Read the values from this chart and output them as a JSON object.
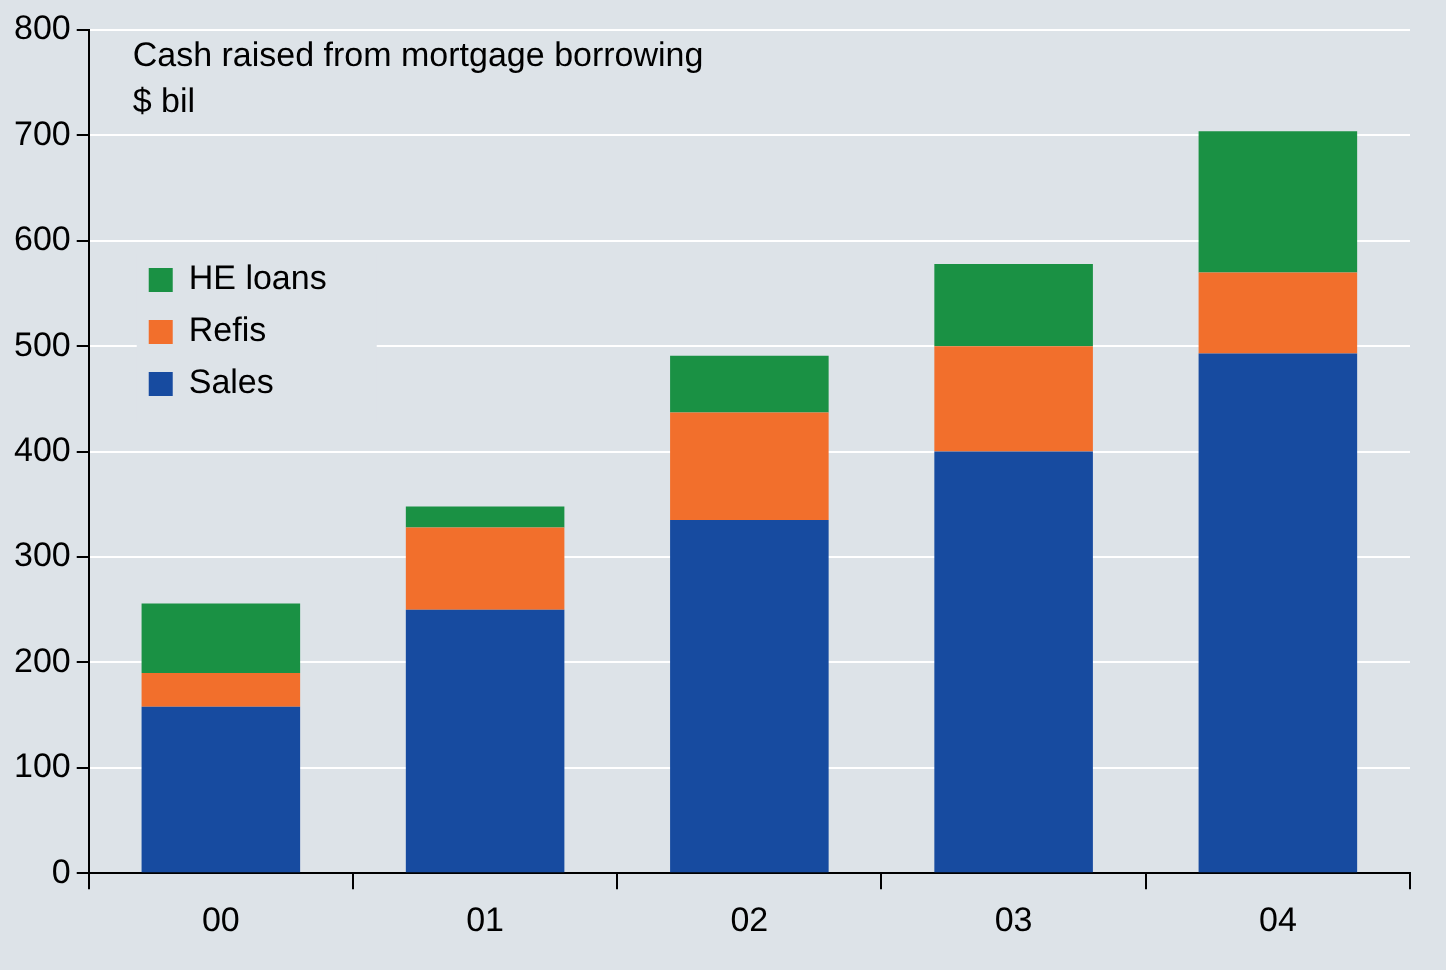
{
  "chart_data": {
    "type": "bar",
    "title": "Cash raised from mortgage borrowing",
    "subtitle": "$ bil",
    "categories": [
      "00",
      "01",
      "02",
      "03",
      "04"
    ],
    "stacked": true,
    "series": [
      {
        "name": "Sales",
        "color": "#174ba0",
        "values": [
          158,
          250,
          335,
          400,
          493
        ]
      },
      {
        "name": "Refis",
        "color": "#f26f2c",
        "values": [
          32,
          78,
          102,
          100,
          77
        ]
      },
      {
        "name": "HE loans",
        "color": "#1a9144",
        "values": [
          66,
          20,
          54,
          78,
          134
        ]
      }
    ],
    "ylim": [
      0,
      800
    ],
    "yticks": [
      0,
      100,
      200,
      300,
      400,
      500,
      600,
      700,
      800
    ],
    "grid": "y",
    "legend": "left"
  }
}
